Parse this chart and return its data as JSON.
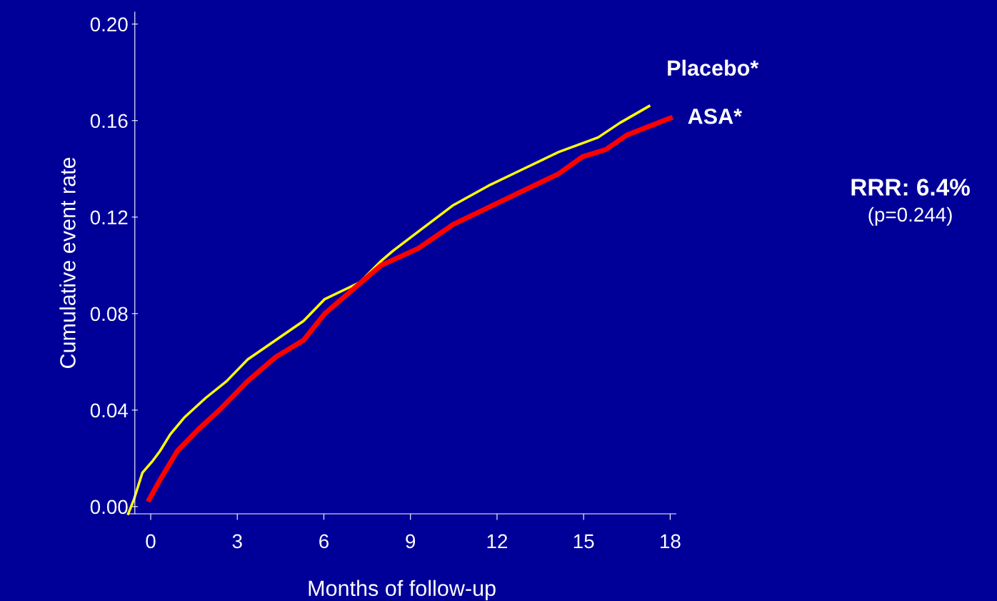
{
  "chart_data": {
    "type": "line",
    "xlabel": "Months of follow-up",
    "ylabel": "Cumulative event rate",
    "xlim": [
      -0.8,
      18.2
    ],
    "ylim": [
      -0.003,
      0.205
    ],
    "xticks": [
      0,
      3,
      6,
      9,
      12,
      15,
      18
    ],
    "yticks": [
      {
        "value": 0,
        "label": "0.00"
      },
      {
        "value": 0.04,
        "label": "0.04"
      },
      {
        "value": 0.08,
        "label": "0.08"
      },
      {
        "value": 0.12,
        "label": "0.12"
      },
      {
        "value": 0.16,
        "label": "0.16"
      },
      {
        "value": 0.2,
        "label": "0.20"
      }
    ],
    "grid": false,
    "legend": false,
    "marker": "none",
    "line_style": "solid",
    "series": [
      {
        "name": "Placebo*",
        "color": "#ffff00",
        "x": [
          -0.78,
          -0.58,
          -0.29,
          0.07,
          0.32,
          0.68,
          1.17,
          1.9,
          2.63,
          3.36,
          4.33,
          5.3,
          6.03,
          7.25,
          8.0,
          8.39,
          9.27,
          10.49,
          11.7,
          12.92,
          14.14,
          15.5,
          16.25,
          17.27
        ],
        "values": [
          -0.003,
          0.003,
          0.014,
          0.019,
          0.023,
          0.03,
          0.037,
          0.045,
          0.052,
          0.061,
          0.069,
          0.077,
          0.086,
          0.093,
          0.102,
          0.106,
          0.114,
          0.125,
          0.133,
          0.14,
          0.147,
          0.153,
          0.159,
          0.166
        ]
      },
      {
        "name": "ASA*",
        "color": "#ff0000",
        "x": [
          -0.05,
          0.32,
          0.92,
          1.65,
          2.38,
          3.36,
          4.33,
          5.3,
          6.03,
          7.98,
          9.27,
          10.49,
          11.7,
          12.92,
          14.14,
          14.96,
          15.77,
          16.5,
          18.0
        ],
        "values": [
          0.003,
          0.011,
          0.023,
          0.032,
          0.04,
          0.052,
          0.062,
          0.069,
          0.08,
          0.1,
          0.107,
          0.117,
          0.124,
          0.131,
          0.138,
          0.145,
          0.148,
          0.154,
          0.161
        ]
      }
    ],
    "annotations": [
      "RRR: 6.4%",
      "(p=0.244)"
    ]
  }
}
